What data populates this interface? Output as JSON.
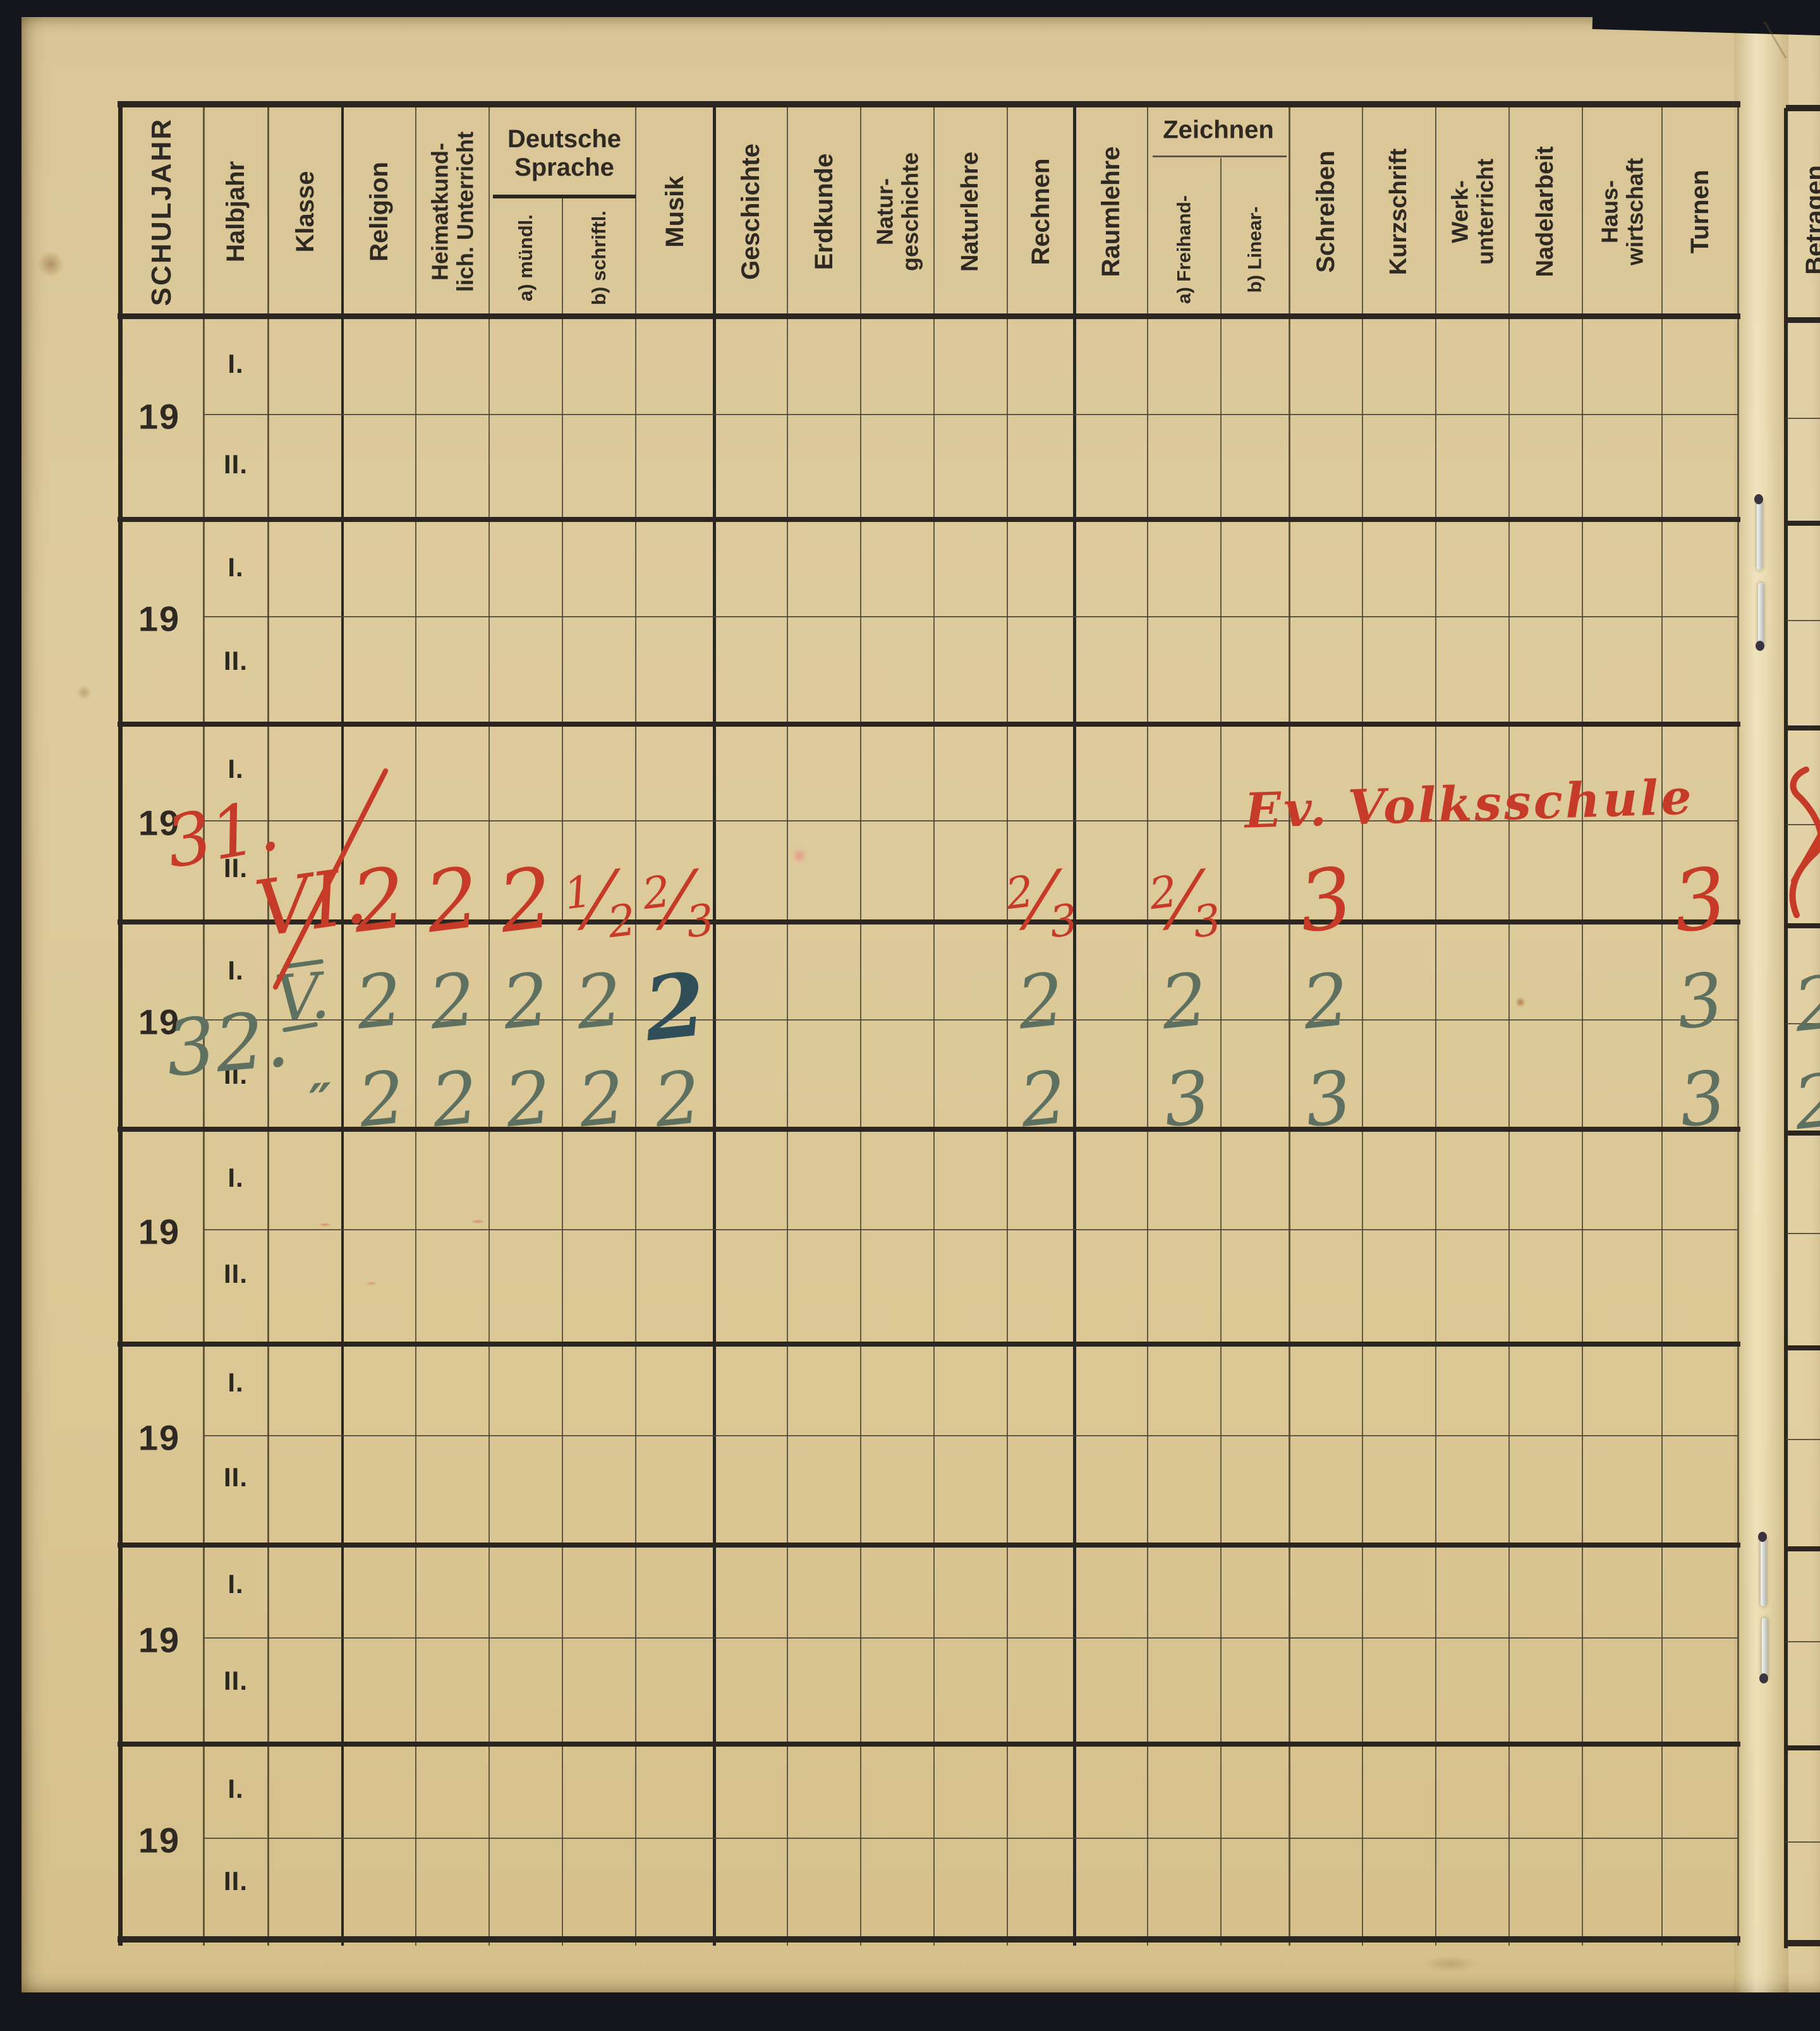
{
  "table": {
    "corner_header": "SCHULJAHR",
    "year_prefix": "19",
    "half_year_labels": [
      "I.",
      "II."
    ],
    "num_year_blocks": 8,
    "columns": [
      {
        "key": "halbjahr",
        "label": "Halbjahr"
      },
      {
        "key": "klasse",
        "label": "Klasse"
      },
      {
        "key": "religion",
        "label": "Religion"
      },
      {
        "key": "heimatkunde",
        "label": "Heimatkund-\nlich. Unterricht"
      },
      {
        "key": "deutsch_muendl",
        "label": "a) mündl.",
        "group": "deutsche_sprache"
      },
      {
        "key": "deutsch_schriftl",
        "label": "b) schriftl.",
        "group": "deutsche_sprache"
      },
      {
        "key": "musik",
        "label": "Musik"
      },
      {
        "key": "geschichte",
        "label": "Geschichte"
      },
      {
        "key": "erdkunde",
        "label": "Erdkunde"
      },
      {
        "key": "naturgeschichte",
        "label": "Natur-\ngeschichte"
      },
      {
        "key": "naturlehre",
        "label": "Naturlehre"
      },
      {
        "key": "rechnen",
        "label": "Rechnen"
      },
      {
        "key": "raumlehre",
        "label": "Raumlehre"
      },
      {
        "key": "zeichnen_freihand",
        "label": "a) Freihand-",
        "group": "zeichnen"
      },
      {
        "key": "zeichnen_linear",
        "label": "b) Linear-",
        "group": "zeichnen"
      },
      {
        "key": "schreiben",
        "label": "Schreiben"
      },
      {
        "key": "kurzschrift",
        "label": "Kurzschrift"
      },
      {
        "key": "werkunterricht",
        "label": "Werk-\nunterricht"
      },
      {
        "key": "nadelarbeit",
        "label": "Nadelarbeit"
      },
      {
        "key": "hauswirtschaft",
        "label": "Haus-\nwirtschaft"
      },
      {
        "key": "turnen",
        "label": "Turnen"
      }
    ],
    "groups": {
      "deutsche_sprache": "Deutsche\nSprache",
      "zeichnen": "Zeichnen"
    },
    "next_page_first_column": "Betragen"
  },
  "handwriting": {
    "ink_colors": {
      "red": "#c63a28",
      "green": "#5e7160",
      "dark_blue": "#2f4e58"
    },
    "block_1931": {
      "ink": "red",
      "year_suffix": "31.",
      "school_note": "Ev. Volksschule",
      "klasse_entry": {
        "row": "II.",
        "text": "VI.",
        "crossed_out": true
      },
      "grades_row": "II.",
      "grades": [
        [
          "religion",
          "2"
        ],
        [
          "heimatkunde",
          "2"
        ],
        [
          "deutsch_muendl",
          "2"
        ],
        [
          "deutsch_schriftl",
          "1/2"
        ],
        [
          "musik",
          "2/3"
        ],
        [
          "rechnen",
          "2/3"
        ],
        [
          "zeichnen_freihand",
          "2/3"
        ],
        [
          "schreiben",
          "3"
        ],
        [
          "turnen",
          "3"
        ]
      ],
      "next_page_partial_grade": "1"
    },
    "block_1932": {
      "ink": "green",
      "year_suffix": "32.",
      "rows": [
        {
          "halbjahr": "I.",
          "klasse": "V.",
          "musik_ink": "dark_blue",
          "grades": [
            [
              "religion",
              "2"
            ],
            [
              "heimatkunde",
              "2"
            ],
            [
              "deutsch_muendl",
              "2"
            ],
            [
              "deutsch_schriftl",
              "2"
            ],
            [
              "musik",
              "2"
            ],
            [
              "rechnen",
              "2"
            ],
            [
              "zeichnen_freihand",
              "2"
            ],
            [
              "schreiben",
              "2"
            ],
            [
              "turnen",
              "3"
            ]
          ],
          "next_page_partial_grade": "2"
        },
        {
          "halbjahr": "II.",
          "klasse": "″",
          "grades": [
            [
              "religion",
              "2"
            ],
            [
              "heimatkunde",
              "2"
            ],
            [
              "deutsch_muendl",
              "2"
            ],
            [
              "deutsch_schriftl",
              "2"
            ],
            [
              "musik",
              "2"
            ],
            [
              "rechnen",
              "2"
            ],
            [
              "zeichnen_freihand",
              "3"
            ],
            [
              "schreiben",
              "3"
            ],
            [
              "turnen",
              "3"
            ]
          ],
          "next_page_partial_grade": "2"
        }
      ]
    }
  }
}
